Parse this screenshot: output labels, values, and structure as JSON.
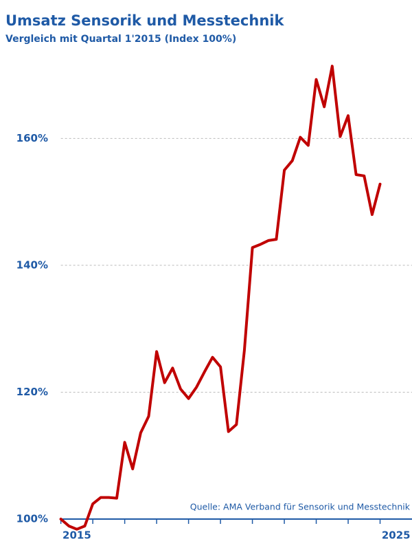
{
  "chart_data": {
    "type": "line",
    "title": "Umsatz Sensorik und Messtechnik",
    "subtitle": "Vergleich mit Quartal 1'2015 (Index 100%)",
    "source": "Quelle: AMA Verband für Sensorik und Messtechnik",
    "x": [
      2015,
      2015.25,
      2015.5,
      2015.75,
      2016,
      2016.25,
      2016.5,
      2016.75,
      2017,
      2017.25,
      2017.5,
      2017.75,
      2018,
      2018.25,
      2018.5,
      2018.75,
      2019,
      2019.25,
      2019.5,
      2019.75,
      2020,
      2020.25,
      2020.5,
      2020.75,
      2021,
      2021.25,
      2021.5,
      2021.75,
      2022,
      2022.25,
      2022.5,
      2022.75,
      2023,
      2023.25,
      2023.5,
      2023.75,
      2024,
      2024.25,
      2024.5,
      2024.75,
      2025
    ],
    "series": [
      {
        "color": "#c00000",
        "values": [
          100,
          98.9,
          98.4,
          98.9,
          102.4,
          103.4,
          103.4,
          103.3,
          112.1,
          107.9,
          113.6,
          116.2,
          126.4,
          121.5,
          123.8,
          120.5,
          119.0,
          120.8,
          123.2,
          125.5,
          124.0,
          113.8,
          114.9,
          126.6,
          142.8,
          143.3,
          143.9,
          144.1,
          155.0,
          156.5,
          160.2,
          158.9,
          169.3,
          165.0,
          171.4,
          160.3,
          163.6,
          154.3,
          154.1,
          148.0,
          152.8
        ]
      }
    ],
    "xlim": [
      2014.9,
      2026
    ],
    "xticks": [
      2015,
      2016,
      2017,
      2018,
      2019,
      2020,
      2021,
      2022,
      2023,
      2024,
      2025
    ],
    "xlabels": [
      2015,
      2025
    ],
    "ylim": [
      100,
      175
    ],
    "yticks": [
      {
        "value": 100,
        "label": "100%"
      },
      {
        "value": 120,
        "label": "120%"
      },
      {
        "value": 140,
        "label": "140%"
      },
      {
        "value": 160,
        "label": "160%"
      }
    ],
    "grid": true,
    "axis_color": "#1f5aa6"
  }
}
